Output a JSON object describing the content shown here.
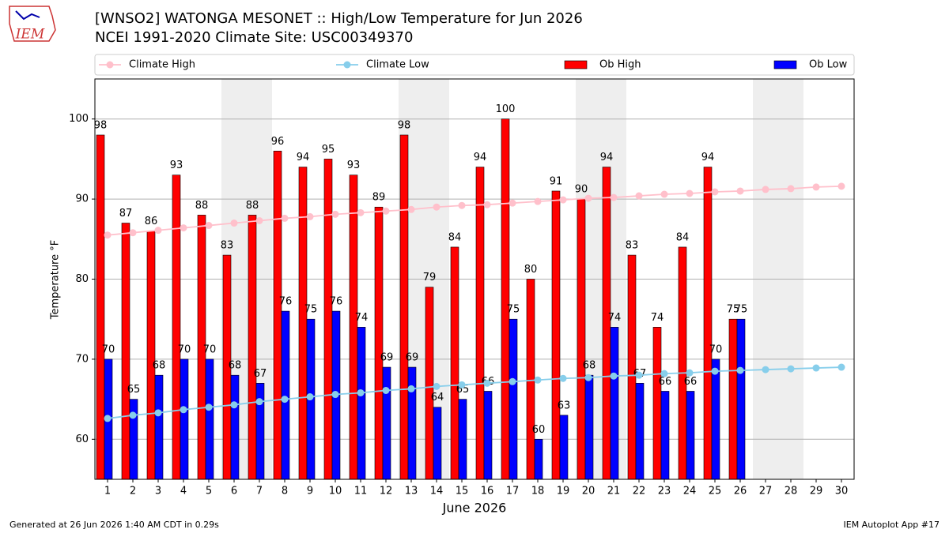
{
  "chart_data": {
    "type": "bar",
    "title": "[WNSO2] WATONGA MESONET :: High/Low Temperature for Jun 2026",
    "subtitle": "NCEI 1991-2020 Climate Site: USC00349370",
    "logo": "IEM",
    "xlabel": "June 2026",
    "ylabel": "Temperature °F",
    "footer_left": "Generated at 26 Jun 2026 1:40 AM CDT in 0.29s",
    "footer_right": "IEM Autoplot App #17",
    "x": [
      1,
      2,
      3,
      4,
      5,
      6,
      7,
      8,
      9,
      10,
      11,
      12,
      13,
      14,
      15,
      16,
      17,
      18,
      19,
      20,
      21,
      22,
      23,
      24,
      25,
      26,
      27,
      28,
      29,
      30
    ],
    "xlim": [
      0.5,
      30.5
    ],
    "xticks": [
      1,
      2,
      3,
      4,
      5,
      6,
      7,
      8,
      9,
      10,
      11,
      12,
      13,
      14,
      15,
      16,
      17,
      18,
      19,
      20,
      21,
      22,
      23,
      24,
      25,
      26,
      27,
      28,
      29,
      30
    ],
    "ylim": [
      55,
      105
    ],
    "yticks": [
      60,
      70,
      80,
      90,
      100
    ],
    "grid": true,
    "shaded_ranges": [
      [
        5.5,
        7.5
      ],
      [
        12.5,
        14.5
      ],
      [
        19.5,
        21.5
      ],
      [
        26.5,
        28.5
      ]
    ],
    "shade_color": "#eeeeee",
    "series": [
      {
        "name": "Climate High",
        "type": "line",
        "color": "pink",
        "values": [
          85.5,
          85.8,
          86.1,
          86.4,
          86.7,
          87.0,
          87.3,
          87.6,
          87.8,
          88.1,
          88.3,
          88.5,
          88.7,
          89.0,
          89.2,
          89.3,
          89.5,
          89.7,
          89.9,
          90.1,
          90.2,
          90.4,
          90.6,
          90.7,
          90.9,
          91.0,
          91.2,
          91.3,
          91.5,
          91.6
        ]
      },
      {
        "name": "Climate Low",
        "type": "line",
        "color": "skyblue",
        "values": [
          62.6,
          63.0,
          63.3,
          63.7,
          64.0,
          64.3,
          64.7,
          65.0,
          65.3,
          65.6,
          65.8,
          66.1,
          66.3,
          66.6,
          66.8,
          67.0,
          67.2,
          67.4,
          67.6,
          67.7,
          67.9,
          68.0,
          68.2,
          68.3,
          68.5,
          68.6,
          68.7,
          68.8,
          68.9,
          69.0
        ]
      },
      {
        "name": "Ob High",
        "type": "bar",
        "color": "red",
        "values": [
          98,
          87,
          86,
          93,
          88,
          83,
          88,
          96,
          94,
          95,
          93,
          89,
          98,
          79,
          84,
          94,
          100,
          80,
          91,
          90,
          94,
          83,
          74,
          84,
          94,
          75,
          null,
          null,
          null,
          null
        ]
      },
      {
        "name": "Ob Low",
        "type": "bar",
        "color": "blue",
        "values": [
          70,
          65,
          68,
          70,
          70,
          68,
          67,
          76,
          75,
          76,
          74,
          69,
          69,
          64,
          65,
          66,
          75,
          60,
          63,
          68,
          74,
          67,
          66,
          66,
          70,
          75,
          null,
          null,
          null,
          null
        ]
      }
    ]
  }
}
